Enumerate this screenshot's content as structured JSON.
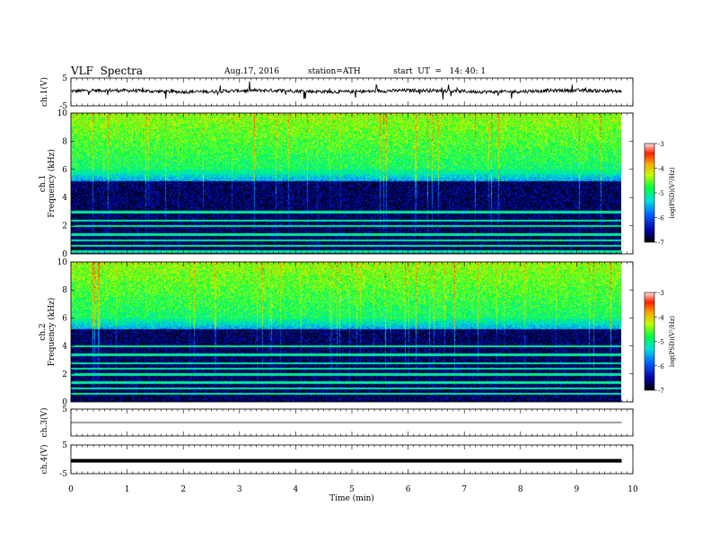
{
  "header": {
    "title": "VLF  Spectra",
    "date": "Aug.17, 2016",
    "station": "station=ATH",
    "start": "start  UT  =   14: 40: 1"
  },
  "chart_data": [
    {
      "type": "line",
      "panel": "ch1-waveform",
      "ylabel": "ch.1(V)",
      "xlim": [
        0,
        10
      ],
      "ylim": [
        -5,
        5
      ],
      "yticks": [
        "5",
        "-5"
      ],
      "series": [
        {
          "description_level": 0.3,
          "x_end": 9.8
        }
      ]
    },
    {
      "type": "heatmap",
      "panel": "ch1-spectrogram",
      "ylabel": "ch.1\nFrequency (kHz)",
      "ylabel_lines": [
        "ch.1",
        "Frequency (kHz)"
      ],
      "xlim": [
        0,
        10
      ],
      "ylim": [
        0,
        10
      ],
      "yticks": [
        "0",
        "2",
        "4",
        "6",
        "8",
        "10"
      ],
      "data_x_end": 9.8,
      "colorbar": {
        "label": "log(PSD)(V²/Hz)",
        "min": -7,
        "max": -3,
        "ticks": [
          "-3",
          "-4",
          "-5",
          "-6",
          "-7"
        ]
      },
      "bands_khz": [
        0.2,
        0.6,
        1.0,
        1.4,
        2.0,
        2.4,
        3.0,
        5.8
      ]
    },
    {
      "type": "heatmap",
      "panel": "ch2-spectrogram",
      "ylabel": "ch.2\nFrequency (kHz)",
      "ylabel_lines": [
        "ch.2",
        "Frequency (kHz)"
      ],
      "xlim": [
        0,
        10
      ],
      "ylim": [
        0,
        10
      ],
      "yticks": [
        "0",
        "2",
        "4",
        "6",
        "8",
        "10"
      ],
      "data_x_end": 9.8,
      "colorbar": {
        "label": "log(PSD)(V²/Hz)",
        "min": -7,
        "max": -3,
        "ticks": [
          "-3",
          "-4",
          "-5",
          "-6",
          "-7"
        ]
      },
      "bands_khz": [
        0.6,
        1.0,
        1.4,
        2.0,
        2.4,
        2.8,
        3.4,
        4.0
      ]
    },
    {
      "type": "line",
      "panel": "ch3-waveform",
      "ylabel": "ch.3(V)",
      "xlim": [
        0,
        10
      ],
      "ylim": [
        -5,
        5
      ],
      "yticks": [
        "5"
      ],
      "series": [
        {
          "description_level": 0.0,
          "x_end": 9.8
        }
      ]
    },
    {
      "type": "line",
      "panel": "ch4-waveform",
      "ylabel": "ch.4(V)",
      "xlim": [
        0,
        10
      ],
      "ylim": [
        -5,
        5
      ],
      "yticks": [
        "5",
        "-5"
      ],
      "series": [
        {
          "description_level": -0.5,
          "x_end": 9.8
        }
      ]
    }
  ],
  "xaxis": {
    "label": "Time  (min)",
    "ticks": [
      "0",
      "1",
      "2",
      "3",
      "4",
      "5",
      "6",
      "7",
      "8",
      "9",
      "10"
    ]
  }
}
